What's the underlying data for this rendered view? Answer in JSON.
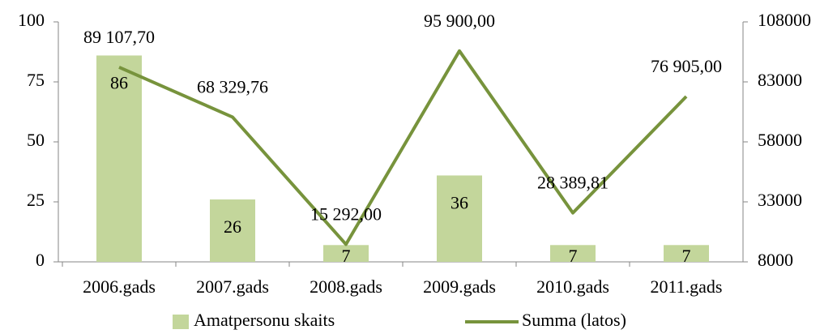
{
  "chart_data": {
    "type": "bar",
    "categories": [
      "2006.gads",
      "2007.gads",
      "2008.gads",
      "2009.gads",
      "2010.gads",
      "2011.gads"
    ],
    "series": [
      {
        "name": "Amatpersonu skaits",
        "type": "bar",
        "color": "#c3d69b",
        "values": [
          86,
          26,
          7,
          36,
          7,
          7
        ]
      },
      {
        "name": "Summa (latos)",
        "type": "line",
        "axis": "y2",
        "color": "#77933c",
        "values": [
          89107.7,
          68329.76,
          15292.0,
          95900.0,
          28389.81,
          76905.0
        ],
        "value_labels": [
          "89 107,70",
          "68 329,76",
          "15 292,00",
          "95 900,00",
          "28 389,81",
          "76 905,00"
        ]
      }
    ],
    "ylim": [
      0,
      100
    ],
    "yticks": [
      0,
      25,
      50,
      75,
      100
    ],
    "y2lim": [
      8000,
      108000
    ],
    "y2ticks": [
      8000,
      33000,
      58000,
      83000,
      108000
    ],
    "legend": "bottom"
  }
}
